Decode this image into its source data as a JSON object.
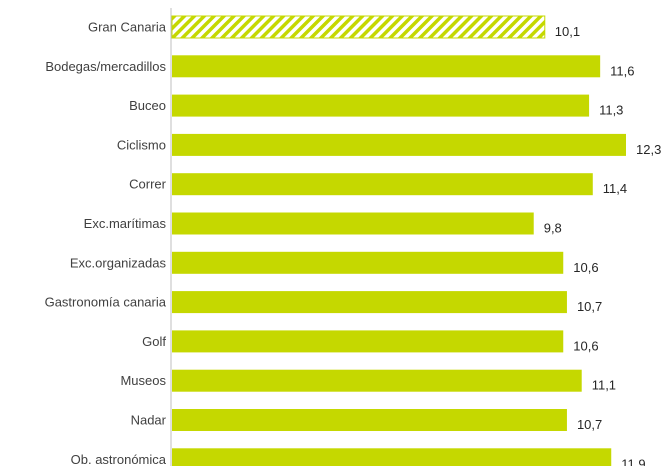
{
  "chart_data": {
    "type": "bar",
    "orientation": "horizontal",
    "categories": [
      "Gran Canaria",
      "Bodegas/mercadillos",
      "Buceo",
      "Ciclismo",
      "Correr",
      "Exc.marítimas",
      "Exc.organizadas",
      "Gastronomía canaria",
      "Golf",
      "Museos",
      "Nadar",
      "Ob. astronómica"
    ],
    "values": [
      10.1,
      11.6,
      11.3,
      12.3,
      11.4,
      9.8,
      10.6,
      10.7,
      10.6,
      11.1,
      10.7,
      11.9
    ],
    "value_labels": [
      "10,1",
      "11,6",
      "11,3",
      "12,3",
      "11,4",
      "9,8",
      "10,6",
      "10,7",
      "10,6",
      "11,1",
      "10,7",
      "11,9"
    ],
    "highlight_index": 0,
    "highlight_style": "diagonal-hatch",
    "xlim": [
      0,
      13.2
    ],
    "colors": {
      "bar": "#c5d800",
      "hatch": "#c5d800",
      "axis": "#bfbfbf"
    },
    "grid": false,
    "legend": "none"
  }
}
